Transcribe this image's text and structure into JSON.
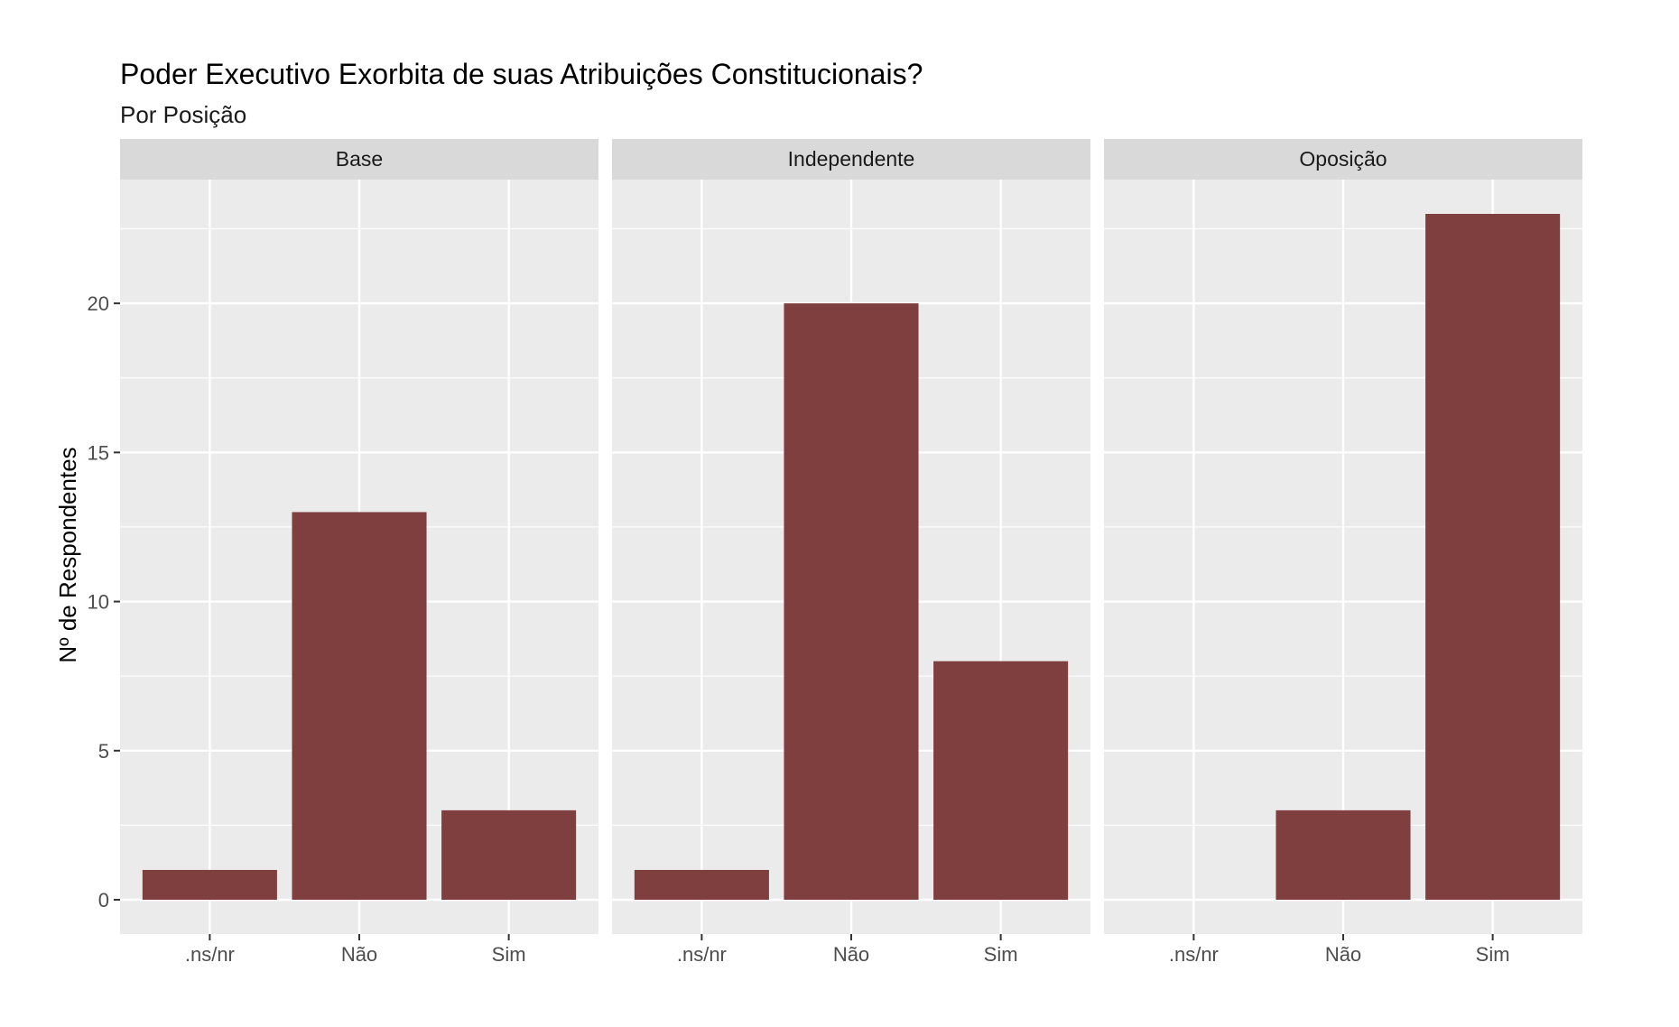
{
  "chart_data": {
    "type": "bar",
    "title": "Poder Executivo Exorbita de suas Atribuições Constitucionais?",
    "subtitle": "Por Posição",
    "xlabel": "",
    "ylabel": "Nº de Respondentes",
    "categories": [
      ".ns/nr",
      "Não",
      "Sim"
    ],
    "facets": [
      {
        "name": "Base",
        "values": [
          1,
          13,
          3
        ]
      },
      {
        "name": "Independente",
        "values": [
          1,
          20,
          8
        ]
      },
      {
        "name": "Oposição",
        "values": [
          0,
          3,
          23
        ]
      }
    ],
    "ylim": [
      -1.15,
      24.15
    ],
    "yticks": [
      0,
      5,
      10,
      15,
      20
    ],
    "grid": true,
    "legend": "none"
  },
  "colors": {
    "bar": "#7f3f3f",
    "panel": "#ebebeb",
    "grid": "#ffffff",
    "strip": "#d9d9d9"
  }
}
